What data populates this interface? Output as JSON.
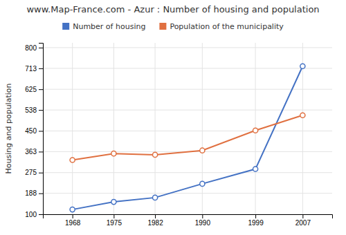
{
  "chart_data": {
    "type": "line",
    "title": "www.Map-France.com - Azur : Number of housing and population",
    "ylabel": "Housing and population",
    "x": [
      1968,
      1975,
      1982,
      1990,
      1999,
      2007
    ],
    "xlim": [
      1963,
      2012
    ],
    "xticks": [
      1968,
      1975,
      1982,
      1990,
      1999,
      2007
    ],
    "ylim": [
      100,
      820
    ],
    "yticks": [
      100,
      188,
      275,
      363,
      450,
      538,
      625,
      713,
      800
    ],
    "grid": true,
    "legend": "top",
    "series": [
      {
        "name": "Number of housing",
        "color": "#4472c4",
        "marker": "circle",
        "values": [
          120,
          152,
          170,
          228,
          290,
          722
        ]
      },
      {
        "name": "Population of the municipality",
        "color": "#e07040",
        "marker": "circle",
        "values": [
          328,
          355,
          350,
          368,
          452,
          516
        ]
      }
    ]
  }
}
